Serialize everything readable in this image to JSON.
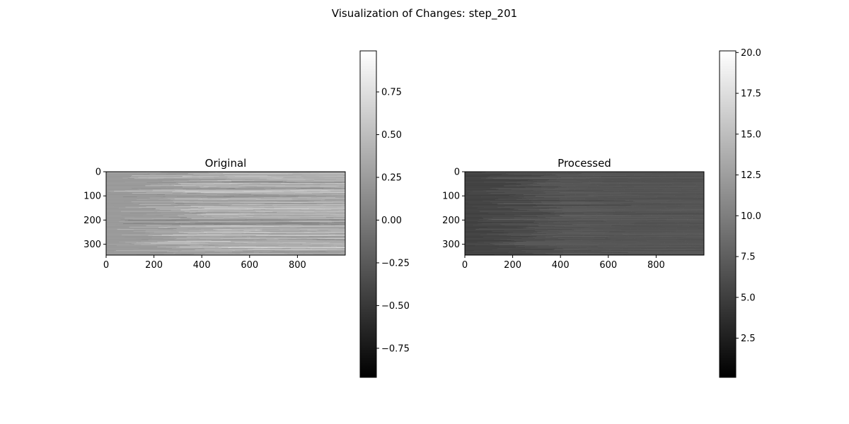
{
  "figure": {
    "suptitle": "Visualization of Changes: step_201"
  },
  "chart_data": [
    {
      "type": "heatmap",
      "title": "Original",
      "colormap": "gray",
      "xlabel": "",
      "ylabel": "",
      "xlim": [
        0,
        1000
      ],
      "ylim": [
        345,
        0
      ],
      "x_ticks": [
        0,
        200,
        400,
        600,
        800
      ],
      "x_tick_labels": [
        "0",
        "200",
        "400",
        "600",
        "800"
      ],
      "y_ticks": [
        0,
        100,
        200,
        300
      ],
      "y_tick_labels": [
        "0",
        "100",
        "200",
        "300"
      ],
      "colorbar": {
        "vmin": -0.92,
        "vmax": 0.99,
        "ticks": [
          -0.75,
          -0.5,
          -0.25,
          0.0,
          0.25,
          0.5,
          0.75
        ],
        "tick_labels": [
          "−0.75",
          "−0.50",
          "−0.25",
          "0.00",
          "0.25",
          "0.50",
          "0.75"
        ]
      }
    },
    {
      "type": "heatmap",
      "title": "Processed",
      "colormap": "gray",
      "xlabel": "",
      "ylabel": "",
      "xlim": [
        0,
        1000
      ],
      "ylim": [
        345,
        0
      ],
      "x_ticks": [
        0,
        200,
        400,
        600,
        800
      ],
      "x_tick_labels": [
        "0",
        "200",
        "400",
        "600",
        "800"
      ],
      "y_ticks": [
        0,
        100,
        200,
        300
      ],
      "y_tick_labels": [
        "0",
        "100",
        "200",
        "300"
      ],
      "colorbar": {
        "vmin": 0.1,
        "vmax": 20.1,
        "ticks": [
          2.5,
          5.0,
          7.5,
          10.0,
          12.5,
          15.0,
          17.5,
          20.0
        ],
        "tick_labels": [
          "2.5",
          "5.0",
          "7.5",
          "10.0",
          "12.5",
          "15.0",
          "17.5",
          "20.0"
        ]
      }
    }
  ]
}
